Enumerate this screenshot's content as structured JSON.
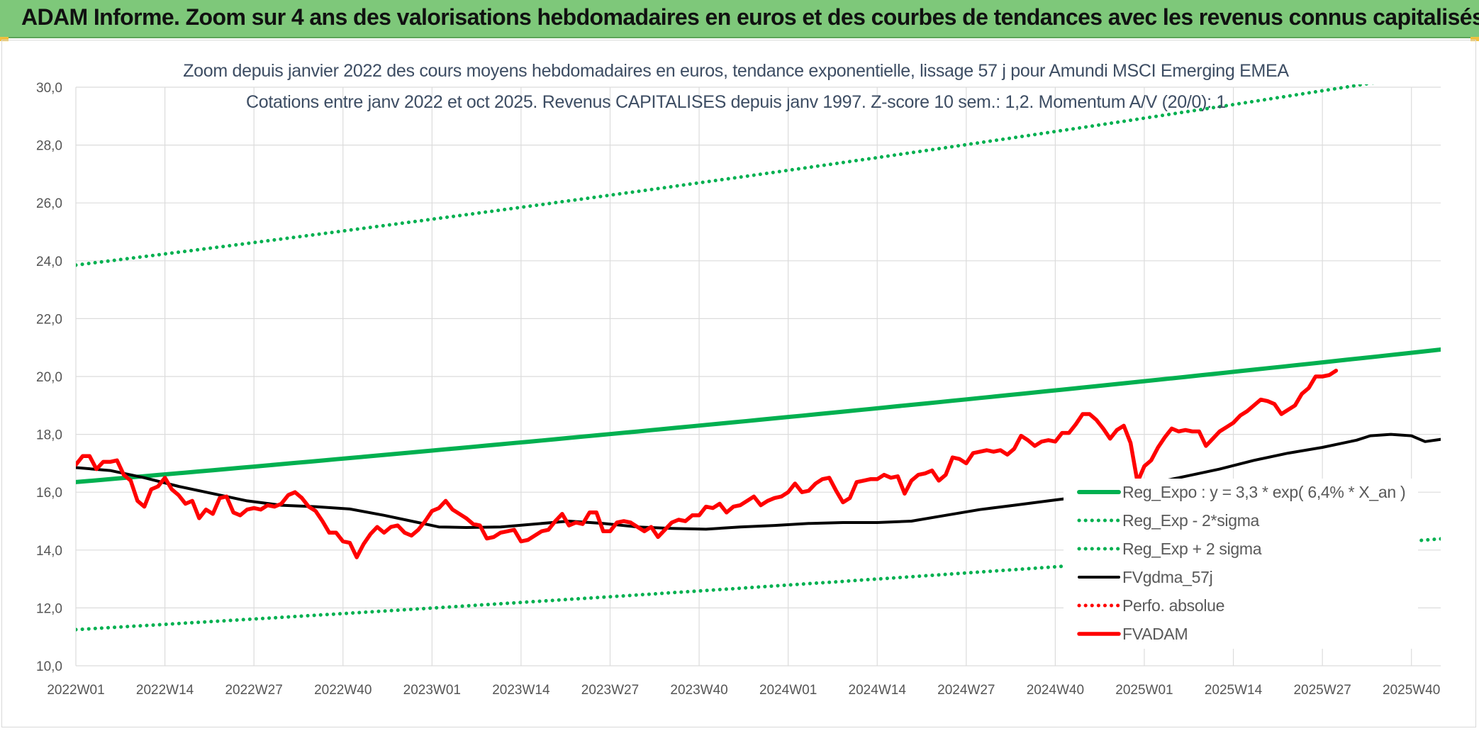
{
  "header": {
    "title": "ADAM Informe. Zoom sur 4 ans des valorisations hebdomadaires en euros et des courbes de tendances avec les revenus connus capitalisés"
  },
  "chart_data": {
    "type": "line",
    "title": "Zoom depuis janvier 2022 des cours moyens hebdomadaires en euros, tendance exponentielle, lissage 57 j pour Amundi MSCI Emerging EMEA",
    "subtitle": "Cotations entre janv 2022 et oct 2025. Revenus CAPITALISES depuis janv 1997. Z-score 10 sem.: 1,2. Momentum A/V (20/0): 1",
    "xlabel": "",
    "ylabel": "",
    "ylim": [
      10,
      30
    ],
    "y_ticks": [
      "10,0",
      "12,0",
      "14,0",
      "16,0",
      "18,0",
      "20,0",
      "22,0",
      "24,0",
      "26,0",
      "28,0",
      "30,0"
    ],
    "x_ticks": [
      "2022W01",
      "2022W14",
      "2022W27",
      "2022W40",
      "2023W01",
      "2023W14",
      "2023W27",
      "2023W40",
      "2024W01",
      "2024W14",
      "2024W27",
      "2024W40",
      "2025W01",
      "2025W14",
      "2025W27",
      "2025W40"
    ],
    "week_count": 201,
    "grid": true,
    "legend_position": "bottom-right",
    "series": [
      {
        "name": "Reg_Expo : y = 3,3 * exp( 6,4% *  X_an )",
        "color": "#00b050",
        "style": "solid-thick",
        "points": [
          [
            0,
            16.35
          ],
          [
            200,
            20.95
          ]
        ]
      },
      {
        "name": "Reg_Exp - 2*sigma",
        "color": "#00b050",
        "style": "dotted",
        "points": [
          [
            0,
            11.25
          ],
          [
            200,
            14.4
          ]
        ]
      },
      {
        "name": "Reg_Exp + 2 sigma",
        "color": "#00b050",
        "style": "dotted",
        "points": [
          [
            0,
            23.85
          ],
          [
            200,
            30.55
          ]
        ]
      },
      {
        "name": "FVgdma_57j",
        "color": "#000000",
        "style": "solid",
        "points": [
          [
            0,
            16.85
          ],
          [
            5,
            16.75
          ],
          [
            10,
            16.5
          ],
          [
            15,
            16.2
          ],
          [
            20,
            15.95
          ],
          [
            25,
            15.7
          ],
          [
            30,
            15.55
          ],
          [
            35,
            15.5
          ],
          [
            40,
            15.42
          ],
          [
            45,
            15.2
          ],
          [
            50,
            14.95
          ],
          [
            53,
            14.8
          ],
          [
            57,
            14.78
          ],
          [
            62,
            14.8
          ],
          [
            67,
            14.9
          ],
          [
            72,
            15.0
          ],
          [
            77,
            14.92
          ],
          [
            82,
            14.8
          ],
          [
            87,
            14.75
          ],
          [
            92,
            14.72
          ],
          [
            97,
            14.8
          ],
          [
            102,
            14.85
          ],
          [
            107,
            14.92
          ],
          [
            112,
            14.95
          ],
          [
            117,
            14.95
          ],
          [
            122,
            15.0
          ],
          [
            127,
            15.2
          ],
          [
            132,
            15.4
          ],
          [
            137,
            15.55
          ],
          [
            142,
            15.7
          ],
          [
            147,
            15.85
          ],
          [
            152,
            16.05
          ],
          [
            157,
            16.3
          ],
          [
            162,
            16.55
          ],
          [
            167,
            16.8
          ],
          [
            172,
            17.1
          ],
          [
            177,
            17.35
          ],
          [
            182,
            17.55
          ],
          [
            187,
            17.8
          ],
          [
            189,
            17.95
          ],
          [
            192,
            18.0
          ],
          [
            195,
            17.95
          ],
          [
            197,
            17.75
          ],
          [
            200,
            17.85
          ],
          [
            203,
            18.0
          ],
          [
            207,
            18.15
          ],
          [
            210,
            18.25
          ],
          [
            213,
            18.45
          ],
          [
            216,
            18.65
          ],
          [
            219,
            18.85
          ],
          [
            222,
            19.05
          ],
          [
            225,
            19.2
          ],
          [
            228,
            19.4
          ],
          [
            231,
            19.6
          ],
          [
            233,
            19.75
          ]
        ]
      },
      {
        "name": "Perfo. absolue",
        "color": "#ff0000",
        "style": "dotted",
        "points": []
      },
      {
        "name": "FVADAM",
        "color": "#ff0000",
        "style": "solid-thick",
        "points": [
          [
            0,
            16.95
          ],
          [
            1,
            17.25
          ],
          [
            2,
            17.25
          ],
          [
            3,
            16.8
          ],
          [
            4,
            17.05
          ],
          [
            5,
            17.05
          ],
          [
            6,
            17.1
          ],
          [
            7,
            16.6
          ],
          [
            8,
            16.4
          ],
          [
            9,
            15.7
          ],
          [
            10,
            15.5
          ],
          [
            11,
            16.1
          ],
          [
            12,
            16.2
          ],
          [
            13,
            16.5
          ],
          [
            14,
            16.1
          ],
          [
            15,
            15.9
          ],
          [
            16,
            15.6
          ],
          [
            17,
            15.7
          ],
          [
            18,
            15.1
          ],
          [
            19,
            15.4
          ],
          [
            20,
            15.25
          ],
          [
            21,
            15.8
          ],
          [
            22,
            15.85
          ],
          [
            23,
            15.3
          ],
          [
            24,
            15.2
          ],
          [
            25,
            15.4
          ],
          [
            26,
            15.45
          ],
          [
            27,
            15.4
          ],
          [
            28,
            15.55
          ],
          [
            29,
            15.5
          ],
          [
            30,
            15.6
          ],
          [
            31,
            15.9
          ],
          [
            32,
            16.0
          ],
          [
            33,
            15.8
          ],
          [
            34,
            15.5
          ],
          [
            35,
            15.35
          ],
          [
            36,
            15.0
          ],
          [
            37,
            14.6
          ],
          [
            38,
            14.6
          ],
          [
            39,
            14.3
          ],
          [
            40,
            14.25
          ],
          [
            41,
            13.75
          ],
          [
            42,
            14.2
          ],
          [
            43,
            14.55
          ],
          [
            44,
            14.8
          ],
          [
            45,
            14.6
          ],
          [
            46,
            14.8
          ],
          [
            47,
            14.85
          ],
          [
            48,
            14.6
          ],
          [
            49,
            14.5
          ],
          [
            50,
            14.7
          ],
          [
            51,
            15.0
          ],
          [
            52,
            15.35
          ],
          [
            53,
            15.45
          ],
          [
            54,
            15.7
          ],
          [
            55,
            15.4
          ],
          [
            56,
            15.25
          ],
          [
            57,
            15.1
          ],
          [
            58,
            14.9
          ],
          [
            59,
            14.85
          ],
          [
            60,
            14.4
          ],
          [
            61,
            14.45
          ],
          [
            62,
            14.6
          ],
          [
            63,
            14.65
          ],
          [
            64,
            14.7
          ],
          [
            65,
            14.3
          ],
          [
            66,
            14.35
          ],
          [
            67,
            14.5
          ],
          [
            68,
            14.65
          ],
          [
            69,
            14.7
          ],
          [
            70,
            15.0
          ],
          [
            71,
            15.25
          ],
          [
            72,
            14.85
          ],
          [
            73,
            14.95
          ],
          [
            74,
            14.9
          ],
          [
            75,
            15.3
          ],
          [
            76,
            15.3
          ],
          [
            77,
            14.65
          ],
          [
            78,
            14.65
          ],
          [
            79,
            14.95
          ],
          [
            80,
            15.0
          ],
          [
            81,
            14.95
          ],
          [
            82,
            14.8
          ],
          [
            83,
            14.65
          ],
          [
            84,
            14.8
          ],
          [
            85,
            14.45
          ],
          [
            86,
            14.7
          ],
          [
            87,
            14.95
          ],
          [
            88,
            15.05
          ],
          [
            89,
            15.0
          ],
          [
            90,
            15.2
          ],
          [
            91,
            15.2
          ],
          [
            92,
            15.5
          ],
          [
            93,
            15.45
          ],
          [
            94,
            15.6
          ],
          [
            95,
            15.3
          ],
          [
            96,
            15.5
          ],
          [
            97,
            15.55
          ],
          [
            98,
            15.7
          ],
          [
            99,
            15.85
          ],
          [
            100,
            15.55
          ],
          [
            101,
            15.7
          ],
          [
            102,
            15.8
          ],
          [
            103,
            15.85
          ],
          [
            104,
            16.0
          ],
          [
            105,
            16.3
          ],
          [
            106,
            16.0
          ],
          [
            107,
            16.05
          ],
          [
            108,
            16.3
          ],
          [
            109,
            16.45
          ],
          [
            110,
            16.5
          ],
          [
            111,
            16.05
          ],
          [
            112,
            15.65
          ],
          [
            113,
            15.8
          ],
          [
            114,
            16.35
          ],
          [
            115,
            16.4
          ],
          [
            116,
            16.45
          ],
          [
            117,
            16.45
          ],
          [
            118,
            16.6
          ],
          [
            119,
            16.5
          ],
          [
            120,
            16.55
          ],
          [
            121,
            15.95
          ],
          [
            122,
            16.4
          ],
          [
            123,
            16.6
          ],
          [
            124,
            16.65
          ],
          [
            125,
            16.75
          ],
          [
            126,
            16.4
          ],
          [
            127,
            16.6
          ],
          [
            128,
            17.2
          ],
          [
            129,
            17.15
          ],
          [
            130,
            17.0
          ],
          [
            131,
            17.35
          ],
          [
            132,
            17.4
          ],
          [
            133,
            17.45
          ],
          [
            134,
            17.4
          ],
          [
            135,
            17.45
          ],
          [
            136,
            17.3
          ],
          [
            137,
            17.5
          ],
          [
            138,
            17.95
          ],
          [
            139,
            17.8
          ],
          [
            140,
            17.6
          ],
          [
            141,
            17.75
          ],
          [
            142,
            17.8
          ],
          [
            143,
            17.75
          ],
          [
            144,
            18.05
          ],
          [
            145,
            18.05
          ],
          [
            146,
            18.35
          ],
          [
            147,
            18.7
          ],
          [
            148,
            18.7
          ],
          [
            149,
            18.5
          ],
          [
            150,
            18.2
          ],
          [
            151,
            17.85
          ],
          [
            152,
            18.15
          ],
          [
            153,
            18.3
          ],
          [
            154,
            17.7
          ],
          [
            155,
            16.35
          ],
          [
            156,
            16.9
          ],
          [
            157,
            17.1
          ],
          [
            158,
            17.55
          ],
          [
            159,
            17.9
          ],
          [
            160,
            18.2
          ],
          [
            161,
            18.1
          ],
          [
            162,
            18.15
          ],
          [
            163,
            18.1
          ],
          [
            164,
            18.1
          ],
          [
            165,
            17.6
          ],
          [
            166,
            17.85
          ],
          [
            167,
            18.1
          ],
          [
            168,
            18.25
          ],
          [
            169,
            18.4
          ],
          [
            170,
            18.65
          ],
          [
            171,
            18.8
          ],
          [
            172,
            19.0
          ],
          [
            173,
            19.2
          ],
          [
            174,
            19.15
          ],
          [
            175,
            19.05
          ],
          [
            176,
            18.7
          ],
          [
            177,
            18.85
          ],
          [
            178,
            19.0
          ],
          [
            179,
            19.4
          ],
          [
            180,
            19.6
          ],
          [
            181,
            20.0
          ],
          [
            182,
            20.0
          ],
          [
            183,
            20.05
          ],
          [
            184,
            20.2
          ]
        ]
      }
    ]
  }
}
